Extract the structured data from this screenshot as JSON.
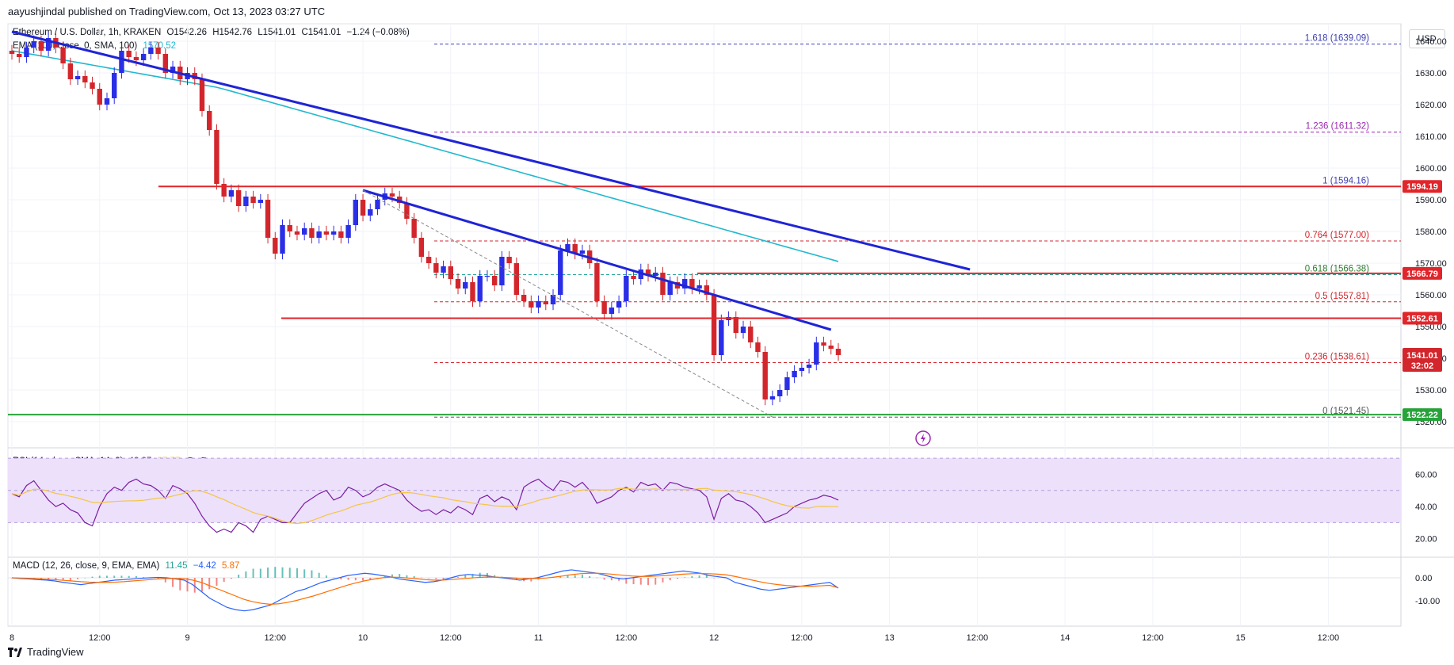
{
  "header": {
    "text": "aayushjindal published on TradingView.com, Oct 13, 2023 03:27 UTC"
  },
  "symbol_line": {
    "name": "Ethereum / U.S. Dollar, 1h, KRAKEN",
    "o": "O1542.26",
    "h": "H1542.76",
    "l": "L1541.01",
    "c": "C1541.01",
    "chg": "−1.24 (−0.08%)"
  },
  "ema_legend": {
    "label": "EMA (100, close, 0, SMA, 100)",
    "value": "1570.52"
  },
  "rsi_legend": {
    "label": "RSI (14, close, SMA, 14, 2)",
    "v1": "43.97",
    "v2": "37.77",
    "v3": "∅",
    "v4": "∅"
  },
  "macd_legend": {
    "label": "MACD (12, 26, close, 9, EMA, EMA)",
    "v1": "11.45",
    "v2": "−4.42",
    "v3": "5.87"
  },
  "currency_button": "USD",
  "footer": {
    "brand": "TradingView",
    "logo_icon": "tradingview-logo-icon"
  },
  "colors": {
    "up": "#2a2ee6",
    "down": "#d3262c",
    "ema": "#22b8cf",
    "trend": "#1f24d6",
    "support_res": "#e0262b",
    "green_line": "#27a33a",
    "fib_blue": "#3f41b3",
    "fib_purple": "#9c27b0",
    "rsi_band": "#ede0fb",
    "rsi_line": "#7b1fa2",
    "rsi_ma": "#f4c542",
    "macd_line": "#2962ff",
    "signal_line": "#ff6d00"
  },
  "chart_data": {
    "type": "candlestick",
    "interval": "1h",
    "symbol": "ETH/USD",
    "ylim": [
      1518,
      1643
    ],
    "y_ticks": [
      1520,
      1530,
      1540,
      1550,
      1560,
      1570,
      1580,
      1590,
      1600,
      1610,
      1620,
      1630,
      1640
    ],
    "x_ticks": [
      "8",
      "12:00",
      "9",
      "12:00",
      "10",
      "12:00",
      "11",
      "12:00",
      "12",
      "12:00",
      "13",
      "12:00",
      "14",
      "12:00",
      "15",
      "12:00"
    ],
    "closes": [
      1636,
      1635,
      1638,
      1640,
      1637,
      1641,
      1638,
      1633,
      1628,
      1629,
      1627,
      1625,
      1620,
      1622,
      1630,
      1637,
      1635,
      1634,
      1636,
      1638,
      1636,
      1630,
      1632,
      1628,
      1630,
      1628,
      1618,
      1612,
      1595,
      1591,
      1593,
      1588,
      1591,
      1589,
      1590,
      1578,
      1573,
      1582,
      1580,
      1579,
      1581,
      1578,
      1580,
      1579,
      1580,
      1578,
      1582,
      1590,
      1585,
      1587,
      1590,
      1592,
      1591,
      1589,
      1584,
      1578,
      1572,
      1570,
      1567,
      1569,
      1565,
      1562,
      1564,
      1558,
      1566,
      1566,
      1563,
      1572,
      1570,
      1560,
      1558,
      1556,
      1558,
      1557,
      1560,
      1574,
      1576,
      1573,
      1574,
      1570,
      1558,
      1554,
      1556,
      1558,
      1566,
      1565,
      1568,
      1566,
      1567,
      1560,
      1564,
      1562,
      1565,
      1562,
      1563,
      1560,
      1541,
      1552,
      1553,
      1548,
      1550,
      1545,
      1542,
      1527,
      1528,
      1530,
      1534,
      1536,
      1537,
      1538,
      1545,
      1544,
      1543,
      1541.01
    ],
    "ema100": {
      "name": "EMA 100",
      "from": 1637,
      "to": 1570.52
    },
    "horizontal_levels": [
      {
        "label": "1594.19",
        "price": 1594.19,
        "kind": "resistance"
      },
      {
        "label": "1566.79",
        "price": 1566.79,
        "kind": "resistance"
      },
      {
        "label": "1552.61",
        "price": 1552.61,
        "kind": "resistance"
      },
      {
        "label": "1522.22",
        "price": 1522.22,
        "kind": "support"
      }
    ],
    "fib_levels": [
      {
        "ratio": "1.618",
        "price": 1639.09,
        "text": "1.618 (1639.09)"
      },
      {
        "ratio": "1.236",
        "price": 1611.32,
        "text": "1.236 (1611.32)"
      },
      {
        "ratio": "1",
        "price": 1594.16,
        "text": "1 (1594.16)"
      },
      {
        "ratio": "0.764",
        "price": 1577.0,
        "text": "0.764 (1577.00)"
      },
      {
        "ratio": "0.618",
        "price": 1566.38,
        "text": "0.618 (1566.38)"
      },
      {
        "ratio": "0.5",
        "price": 1557.81,
        "text": "0.5 (1557.81)"
      },
      {
        "ratio": "0.236",
        "price": 1538.61,
        "text": "0.236 (1538.61)"
      },
      {
        "ratio": "0",
        "price": 1521.45,
        "text": "0 (1521.45)"
      }
    ],
    "trendlines": [
      {
        "name": "upper-trendline",
        "from": [
          0,
          1643
        ],
        "to": [
          131,
          1568
        ]
      },
      {
        "name": "lower-trendline",
        "from": [
          48,
          1593
        ],
        "to": [
          112,
          1549
        ]
      }
    ],
    "last_price": {
      "label": "1541.01",
      "countdown": "32:02"
    },
    "rsi": {
      "ylim": [
        10,
        72
      ],
      "ticks": [
        20,
        40,
        60
      ],
      "band": [
        30,
        70
      ],
      "values": [
        48,
        46,
        53,
        56,
        50,
        44,
        40,
        42,
        38,
        36,
        30,
        28,
        40,
        48,
        52,
        50,
        55,
        57,
        54,
        53,
        50,
        45,
        53,
        51,
        48,
        42,
        34,
        28,
        24,
        26,
        24,
        30,
        28,
        24,
        32,
        34,
        32,
        30,
        30,
        36,
        42,
        45,
        48,
        50,
        44,
        46,
        52,
        50,
        46,
        48,
        52,
        54,
        52,
        50,
        44,
        40,
        37,
        38,
        35,
        38,
        36,
        40,
        38,
        35,
        45,
        47,
        43,
        46,
        44,
        38,
        52,
        55,
        57,
        53,
        50,
        56,
        55,
        52,
        55,
        50,
        42,
        44,
        46,
        50,
        52,
        49,
        55,
        53,
        54,
        50,
        55,
        54,
        52,
        51,
        50,
        46,
        32,
        45,
        48,
        44,
        43,
        40,
        36,
        30,
        32,
        34,
        36,
        40,
        42,
        44,
        45,
        47,
        46,
        43.97
      ]
    },
    "macd": {
      "ylim": [
        -16,
        8
      ],
      "ticks": [
        -10,
        0
      ],
      "macd_line": [
        0,
        -0.3,
        -0.5,
        -0.8,
        -1,
        -1.4,
        -2,
        -2.5,
        -3,
        -2.5,
        -2,
        -1.5,
        -1,
        -0.8,
        -0.5,
        -0.2,
        0,
        0.2,
        0,
        -0.5,
        -1,
        -3,
        -6,
        -9,
        -11,
        -13,
        -14,
        -14.5,
        -14,
        -13,
        -12,
        -10,
        -8,
        -6,
        -5,
        -3.5,
        -2,
        -1,
        0,
        1,
        1.5,
        2,
        1.6,
        1,
        0.4,
        -0.5,
        -1,
        -1.5,
        -2,
        -1.7,
        -1,
        0,
        1,
        1.5,
        1.2,
        1,
        0.4,
        0,
        -0.5,
        -1,
        -0.5,
        0,
        1,
        2,
        3,
        3.5,
        3,
        2.5,
        2,
        1,
        0,
        -0.5,
        0,
        0.5,
        1,
        1.5,
        2,
        2.5,
        3,
        2.5,
        2,
        1,
        0.5,
        0,
        -2,
        -3,
        -4,
        -5,
        -5.5,
        -5,
        -4.5,
        -4,
        -3.5,
        -3,
        -2.5,
        -2,
        -4.5
      ],
      "signal_line": [
        0,
        -0.1,
        -0.2,
        -0.4,
        -0.6,
        -0.8,
        -1.1,
        -1.4,
        -1.7,
        -1.9,
        -2,
        -2,
        -1.9,
        -1.7,
        -1.4,
        -1.1,
        -0.8,
        -0.5,
        -0.3,
        -0.3,
        -0.4,
        -1,
        -2,
        -3.5,
        -5,
        -6.5,
        -8,
        -9.5,
        -10.5,
        -11.2,
        -11.6,
        -11.4,
        -10.8,
        -10,
        -9,
        -8,
        -6.8,
        -5.6,
        -4.4,
        -3.2,
        -2.2,
        -1.3,
        -0.6,
        0,
        0.3,
        0.2,
        -0.1,
        -0.4,
        -0.8,
        -1,
        -1,
        -0.8,
        -0.5,
        -0.2,
        0.1,
        0.3,
        0.3,
        0.2,
        0,
        -0.2,
        -0.3,
        -0.3,
        -0.1,
        0.3,
        0.8,
        1.4,
        1.8,
        2,
        2,
        1.8,
        1.5,
        1.1,
        0.8,
        0.6,
        0.6,
        0.8,
        1,
        1.3,
        1.6,
        1.8,
        1.9,
        1.8,
        1.6,
        1.3,
        0.6,
        -0.2,
        -1,
        -1.8,
        -2.5,
        -3,
        -3.4,
        -3.6,
        -3.7,
        -3.7,
        -3.5,
        -3.3,
        -4.42
      ]
    }
  }
}
